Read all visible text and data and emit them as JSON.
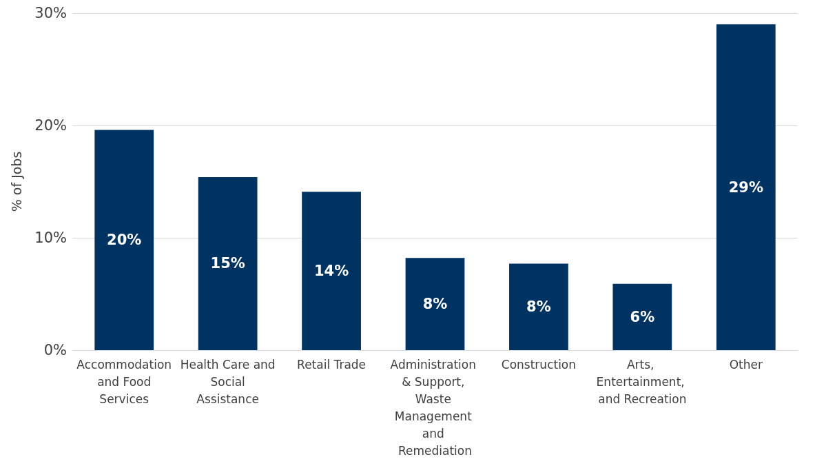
{
  "chart_data": {
    "type": "bar",
    "ylabel": "% of Jobs",
    "categories": [
      "Accommodation and Food Services",
      "Health Care and Social Assistance",
      "Retail Trade",
      "Administration & Support, Waste Management and Remediation",
      "Construction",
      "Arts, Entertainment, and Recreation",
      "Other"
    ],
    "values": [
      19.6,
      15.4,
      14.1,
      8.2,
      7.7,
      5.9,
      29.0
    ],
    "value_labels": [
      "20%",
      "15%",
      "14%",
      "8%",
      "8%",
      "6%",
      "29%"
    ],
    "color": "#003262",
    "ylim": [
      0,
      30
    ],
    "yticks": [
      {
        "value": 0,
        "label": "0%"
      },
      {
        "value": 10,
        "label": "10%"
      },
      {
        "value": 20,
        "label": "20%"
      },
      {
        "value": 30,
        "label": "30%"
      }
    ],
    "grid": "y"
  }
}
